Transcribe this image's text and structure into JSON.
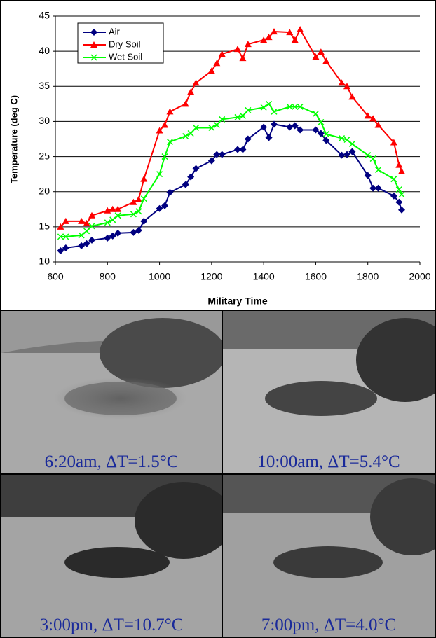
{
  "chart_data": {
    "type": "line",
    "x_label": "Military Time",
    "y_label": "Temperature (deg C)",
    "xlim": [
      600,
      2000
    ],
    "xticks": [
      600,
      800,
      1000,
      1200,
      1400,
      1600,
      1800,
      2000
    ],
    "ylim": [
      10,
      45
    ],
    "yticks": [
      10,
      15,
      20,
      25,
      30,
      35,
      40,
      45
    ],
    "grid": true,
    "legend": "upper left",
    "x": [
      620,
      640,
      700,
      720,
      740,
      800,
      820,
      840,
      900,
      920,
      940,
      1000,
      1020,
      1040,
      1100,
      1120,
      1140,
      1200,
      1220,
      1240,
      1300,
      1320,
      1340,
      1400,
      1420,
      1440,
      1500,
      1520,
      1540,
      1600,
      1620,
      1640,
      1700,
      1720,
      1740,
      1800,
      1820,
      1840,
      1900,
      1920,
      1930
    ],
    "series": [
      {
        "name": "Air",
        "color": "#000080",
        "marker": "diamond",
        "values": [
          11.6,
          12,
          12.3,
          12.6,
          13.1,
          13.4,
          13.7,
          14.1,
          14.2,
          14.5,
          15.8,
          17.6,
          18,
          19.9,
          21,
          22.1,
          23.3,
          24.4,
          25.3,
          25.3,
          26,
          26,
          27.5,
          29.2,
          27.7,
          29.6,
          29.2,
          29.4,
          28.8,
          28.8,
          28.3,
          27.3,
          25.2,
          25.3,
          25.7,
          22.3,
          20.5,
          20.5,
          19.4,
          18.5,
          17.4
        ]
      },
      {
        "name": "Dry Soil",
        "color": "#ff0000",
        "marker": "triangle",
        "values": [
          15,
          15.8,
          15.8,
          15.5,
          16.6,
          17.3,
          17.5,
          17.5,
          18.5,
          18.9,
          21.8,
          28.7,
          29.5,
          31.4,
          32.5,
          34.2,
          35.5,
          37.2,
          38.3,
          39.6,
          40.3,
          39,
          41,
          41.6,
          42,
          42.8,
          42.7,
          41.6,
          43.1,
          39.2,
          39.9,
          38.6,
          35.5,
          35,
          33.5,
          30.8,
          30.4,
          29.5,
          27,
          23.8,
          22.9
        ]
      },
      {
        "name": "Wet Soil",
        "color": "#00ff00",
        "marker": "x",
        "values": [
          13.6,
          13.6,
          13.8,
          14.4,
          15.1,
          15.6,
          16,
          16.6,
          16.8,
          17.2,
          19,
          22.5,
          25,
          27.1,
          27.9,
          28.3,
          29.1,
          29.1,
          29.5,
          30.3,
          30.6,
          30.8,
          31.6,
          32,
          32.5,
          31.4,
          32.1,
          32.1,
          32.1,
          31.1,
          29.9,
          28.2,
          27.6,
          27.4,
          26.8,
          25.2,
          24.7,
          23.1,
          21.8,
          20.3,
          19.6
        ]
      }
    ]
  },
  "images": [
    {
      "caption": "6:20am, ΔT=1.5°C"
    },
    {
      "caption": "10:00am, ΔT=5.4°C"
    },
    {
      "caption": "3:00pm, ΔT=10.7°C"
    },
    {
      "caption": "7:00pm, ΔT=4.0°C"
    }
  ]
}
